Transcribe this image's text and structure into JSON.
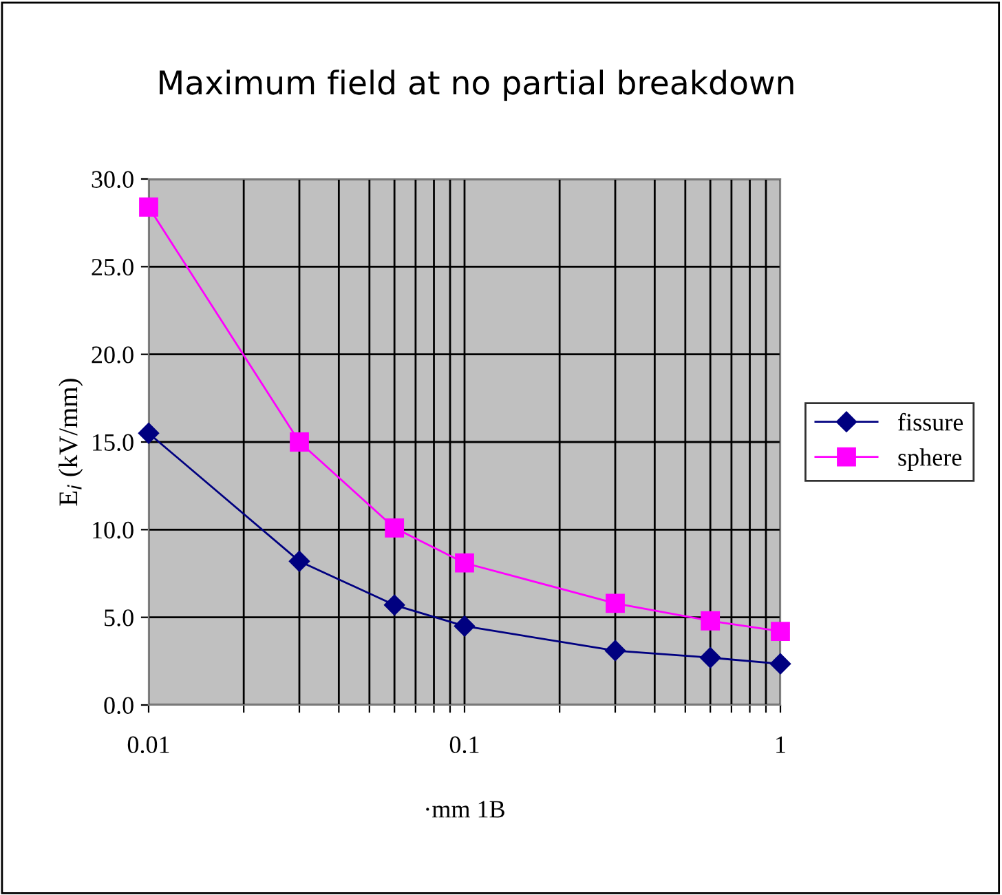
{
  "chart_data": {
    "type": "line",
    "title": "Maximum field at no partial breakdown",
    "xlabel": "·mm 1B",
    "ylabel": "E$_{i}$ (kV/mm)",
    "x": [
      0.01,
      0.03,
      0.06,
      0.1,
      0.3,
      0.6,
      1
    ],
    "series": [
      {
        "name": "fissure",
        "color": "#000080",
        "marker": "diamond",
        "values": [
          15.5,
          8.2,
          5.7,
          4.5,
          3.1,
          2.7,
          2.35
        ]
      },
      {
        "name": "sphere",
        "color": "#ff00ff",
        "marker": "square",
        "values": [
          28.4,
          15.0,
          10.1,
          8.1,
          5.8,
          4.8,
          4.2
        ]
      }
    ],
    "log": "x",
    "xlim": [
      0.01,
      1
    ],
    "ylim": [
      0,
      30
    ],
    "xticks": [
      0.01,
      {
        "value": 0.02,
        "label": null
      },
      {
        "value": 0.03,
        "label": null
      },
      {
        "value": 0.04,
        "label": null
      },
      {
        "value": 0.05,
        "label": null
      },
      {
        "value": 0.06,
        "label": null
      },
      {
        "value": 0.07,
        "label": null
      },
      {
        "value": 0.08,
        "label": null
      },
      {
        "value": 0.09,
        "label": null
      },
      0.1,
      {
        "value": 0.2,
        "label": null
      },
      {
        "value": 0.3,
        "label": null
      },
      {
        "value": 0.4,
        "label": null
      },
      {
        "value": 0.5,
        "label": null
      },
      {
        "value": 0.6,
        "label": null
      },
      {
        "value": 0.7,
        "label": null
      },
      {
        "value": 0.8,
        "label": null
      },
      {
        "value": 0.9,
        "label": null
      },
      1
    ],
    "yticks": [
      {
        "value": 0,
        "label": "0.0"
      },
      {
        "value": 5,
        "label": "5.0"
      },
      {
        "value": 10,
        "label": "10.0"
      },
      {
        "value": 15,
        "label": "15.0"
      },
      {
        "value": 20,
        "label": "20.0"
      },
      {
        "value": 25,
        "label": "25.0"
      },
      {
        "value": 30,
        "label": "30.0"
      }
    ],
    "grid": true,
    "legend": "right",
    "line_style": "solid"
  }
}
